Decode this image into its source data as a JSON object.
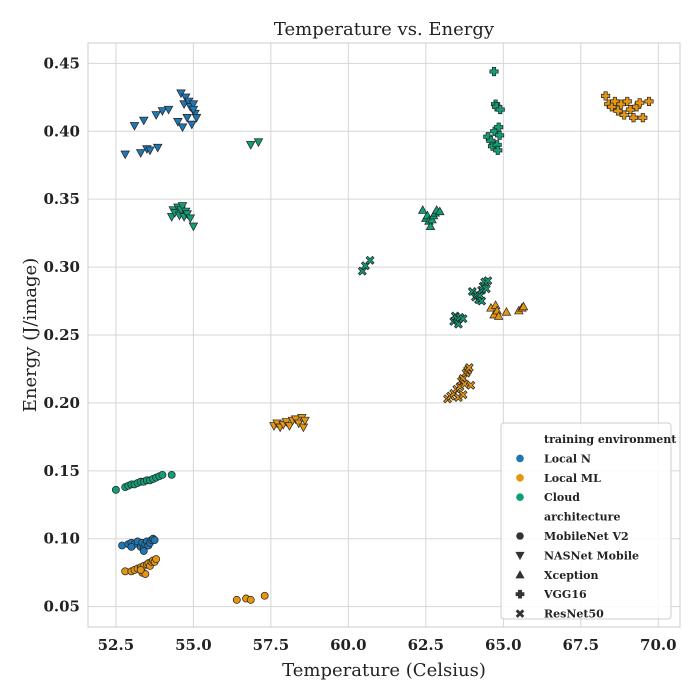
{
  "chart_data": {
    "type": "scatter",
    "title": "Temperature vs. Energy",
    "xlabel": "Temperature (Celsius)",
    "ylabel": "Energy (J/image)",
    "xlim": [
      51.6,
      70.7
    ],
    "ylim": [
      0.035,
      0.465
    ],
    "xticks": [
      52.5,
      55.0,
      57.5,
      60.0,
      62.5,
      65.0,
      67.5,
      70.0
    ],
    "xtick_labels": [
      "52.5",
      "55.0",
      "57.5",
      "60.0",
      "62.5",
      "65.0",
      "67.5",
      "70.0"
    ],
    "yticks": [
      0.05,
      0.1,
      0.15,
      0.2,
      0.25,
      0.3,
      0.35,
      0.4,
      0.45
    ],
    "ytick_labels": [
      "0.05",
      "0.10",
      "0.15",
      "0.20",
      "0.25",
      "0.30",
      "0.35",
      "0.40",
      "0.45"
    ],
    "grid": true,
    "legend_placement": "bottom-right",
    "legend": {
      "hue_title": "training environment",
      "hue_entries": [
        {
          "label": "Local N",
          "color": "#1f77b4"
        },
        {
          "label": "Local ML",
          "color": "#e6950f"
        },
        {
          "label": "Cloud",
          "color": "#109e77"
        }
      ],
      "style_title": "architecture",
      "style_entries": [
        {
          "label": "MobileNet V2",
          "marker": "circle"
        },
        {
          "label": "NASNet Mobile",
          "marker": "triangle-down"
        },
        {
          "label": "Xception",
          "marker": "triangle-up"
        },
        {
          "label": "VGG16",
          "marker": "plus"
        },
        {
          "label": "ResNet50",
          "marker": "x"
        }
      ]
    },
    "series": [
      {
        "env": "Local N",
        "arch": "MobileNet V2",
        "points": [
          [
            52.7,
            0.095
          ],
          [
            52.9,
            0.096
          ],
          [
            53.0,
            0.097
          ],
          [
            53.1,
            0.096
          ],
          [
            53.2,
            0.098
          ],
          [
            53.3,
            0.094
          ],
          [
            53.35,
            0.097
          ],
          [
            53.4,
            0.093
          ],
          [
            53.45,
            0.096
          ],
          [
            53.5,
            0.098
          ],
          [
            53.55,
            0.095
          ],
          [
            53.6,
            0.097
          ],
          [
            53.65,
            0.099
          ],
          [
            53.7,
            0.1
          ],
          [
            53.75,
            0.099
          ],
          [
            53.0,
            0.094
          ],
          [
            53.4,
            0.091
          ]
        ]
      },
      {
        "env": "Local N",
        "arch": "NASNet Mobile",
        "points": [
          [
            52.8,
            0.383
          ],
          [
            53.1,
            0.404
          ],
          [
            53.3,
            0.384
          ],
          [
            53.4,
            0.408
          ],
          [
            53.5,
            0.387
          ],
          [
            53.6,
            0.386
          ],
          [
            53.8,
            0.412
          ],
          [
            53.85,
            0.388
          ],
          [
            54.0,
            0.415
          ],
          [
            54.2,
            0.416
          ],
          [
            54.5,
            0.407
          ],
          [
            54.6,
            0.428
          ],
          [
            54.65,
            0.403
          ],
          [
            54.7,
            0.42
          ],
          [
            54.75,
            0.425
          ],
          [
            54.8,
            0.41
          ],
          [
            54.85,
            0.422
          ],
          [
            54.9,
            0.418
          ],
          [
            54.95,
            0.405
          ],
          [
            55.0,
            0.42
          ],
          [
            55.05,
            0.413
          ],
          [
            55.1,
            0.41
          ],
          [
            55.0,
            0.416
          ]
        ]
      },
      {
        "env": "Local ML",
        "arch": "MobileNet V2",
        "points": [
          [
            52.8,
            0.076
          ],
          [
            53.0,
            0.076
          ],
          [
            53.1,
            0.077
          ],
          [
            53.2,
            0.078
          ],
          [
            53.3,
            0.079
          ],
          [
            53.35,
            0.075
          ],
          [
            53.4,
            0.08
          ],
          [
            53.45,
            0.074
          ],
          [
            53.5,
            0.081
          ],
          [
            53.55,
            0.082
          ],
          [
            53.6,
            0.08
          ],
          [
            53.65,
            0.083
          ],
          [
            53.7,
            0.084
          ],
          [
            53.75,
            0.083
          ],
          [
            53.8,
            0.085
          ],
          [
            53.3,
            0.077
          ],
          [
            56.4,
            0.055
          ],
          [
            56.7,
            0.056
          ],
          [
            56.85,
            0.055
          ],
          [
            57.3,
            0.058
          ]
        ]
      },
      {
        "env": "Local ML",
        "arch": "NASNet Mobile",
        "points": [
          [
            57.6,
            0.183
          ],
          [
            57.7,
            0.185
          ],
          [
            57.8,
            0.182
          ],
          [
            57.9,
            0.184
          ],
          [
            58.0,
            0.186
          ],
          [
            58.1,
            0.183
          ],
          [
            58.2,
            0.187
          ],
          [
            58.3,
            0.188
          ],
          [
            58.4,
            0.185
          ],
          [
            58.5,
            0.189
          ],
          [
            58.55,
            0.182
          ],
          [
            58.6,
            0.187
          ]
        ]
      },
      {
        "env": "Local ML",
        "arch": "Xception",
        "points": [
          [
            64.6,
            0.27
          ],
          [
            64.7,
            0.265
          ],
          [
            64.75,
            0.272
          ],
          [
            64.8,
            0.268
          ],
          [
            64.85,
            0.264
          ],
          [
            65.1,
            0.267
          ],
          [
            65.5,
            0.268
          ],
          [
            65.6,
            0.27
          ],
          [
            65.65,
            0.271
          ]
        ]
      },
      {
        "env": "Local ML",
        "arch": "VGG16",
        "points": [
          [
            68.3,
            0.426
          ],
          [
            68.4,
            0.42
          ],
          [
            68.5,
            0.418
          ],
          [
            68.6,
            0.422
          ],
          [
            68.7,
            0.415
          ],
          [
            68.8,
            0.42
          ],
          [
            68.9,
            0.412
          ],
          [
            69.0,
            0.422
          ],
          [
            69.1,
            0.416
          ],
          [
            69.2,
            0.41
          ],
          [
            69.3,
            0.418
          ],
          [
            69.4,
            0.421
          ],
          [
            69.5,
            0.41
          ],
          [
            69.7,
            0.422
          ]
        ]
      },
      {
        "env": "Local ML",
        "arch": "ResNet50",
        "points": [
          [
            63.2,
            0.203
          ],
          [
            63.3,
            0.205
          ],
          [
            63.4,
            0.207
          ],
          [
            63.5,
            0.21
          ],
          [
            63.55,
            0.204
          ],
          [
            63.6,
            0.212
          ],
          [
            63.65,
            0.216
          ],
          [
            63.7,
            0.218
          ],
          [
            63.75,
            0.214
          ],
          [
            63.8,
            0.222
          ],
          [
            63.85,
            0.224
          ],
          [
            63.9,
            0.226
          ],
          [
            63.95,
            0.213
          ],
          [
            63.7,
            0.206
          ]
        ]
      },
      {
        "env": "Cloud",
        "arch": "MobileNet V2",
        "points": [
          [
            52.5,
            0.136
          ],
          [
            52.8,
            0.138
          ],
          [
            52.9,
            0.139
          ],
          [
            53.0,
            0.14
          ],
          [
            53.1,
            0.14
          ],
          [
            53.2,
            0.141
          ],
          [
            53.3,
            0.142
          ],
          [
            53.4,
            0.142
          ],
          [
            53.5,
            0.143
          ],
          [
            53.6,
            0.143
          ],
          [
            53.7,
            0.144
          ],
          [
            53.8,
            0.145
          ],
          [
            53.9,
            0.146
          ],
          [
            54.0,
            0.147
          ],
          [
            54.3,
            0.147
          ]
        ]
      },
      {
        "env": "Cloud",
        "arch": "NASNet Mobile",
        "points": [
          [
            54.3,
            0.337
          ],
          [
            54.35,
            0.342
          ],
          [
            54.4,
            0.34
          ],
          [
            54.5,
            0.344
          ],
          [
            54.55,
            0.338
          ],
          [
            54.6,
            0.342
          ],
          [
            54.65,
            0.345
          ],
          [
            54.7,
            0.337
          ],
          [
            54.75,
            0.341
          ],
          [
            54.8,
            0.339
          ],
          [
            54.9,
            0.336
          ],
          [
            55.0,
            0.33
          ],
          [
            56.85,
            0.39
          ],
          [
            57.1,
            0.392
          ]
        ]
      },
      {
        "env": "Cloud",
        "arch": "Xception",
        "points": [
          [
            62.4,
            0.342
          ],
          [
            62.5,
            0.336
          ],
          [
            62.55,
            0.338
          ],
          [
            62.6,
            0.334
          ],
          [
            62.65,
            0.33
          ],
          [
            62.7,
            0.335
          ],
          [
            62.75,
            0.338
          ],
          [
            62.8,
            0.34
          ],
          [
            62.85,
            0.342
          ],
          [
            62.95,
            0.341
          ]
        ]
      },
      {
        "env": "Cloud",
        "arch": "VGG16",
        "points": [
          [
            64.5,
            0.396
          ],
          [
            64.6,
            0.393
          ],
          [
            64.65,
            0.389
          ],
          [
            64.7,
            0.444
          ],
          [
            64.72,
            0.4
          ],
          [
            64.75,
            0.42
          ],
          [
            64.78,
            0.418
          ],
          [
            64.8,
            0.39
          ],
          [
            64.82,
            0.386
          ],
          [
            64.85,
            0.403
          ],
          [
            64.88,
            0.397
          ],
          [
            64.9,
            0.416
          ]
        ]
      },
      {
        "env": "Cloud",
        "arch": "ResNet50",
        "points": [
          [
            60.45,
            0.297
          ],
          [
            60.55,
            0.301
          ],
          [
            60.7,
            0.305
          ],
          [
            63.4,
            0.26
          ],
          [
            63.45,
            0.264
          ],
          [
            63.5,
            0.262
          ],
          [
            63.55,
            0.258
          ],
          [
            63.6,
            0.263
          ],
          [
            63.7,
            0.262
          ],
          [
            64.0,
            0.282
          ],
          [
            64.1,
            0.278
          ],
          [
            64.15,
            0.28
          ],
          [
            64.2,
            0.276
          ],
          [
            64.25,
            0.279
          ],
          [
            64.3,
            0.283
          ],
          [
            64.35,
            0.286
          ],
          [
            64.4,
            0.289
          ],
          [
            64.45,
            0.284
          ],
          [
            64.5,
            0.29
          ],
          [
            64.3,
            0.275
          ]
        ]
      }
    ]
  }
}
